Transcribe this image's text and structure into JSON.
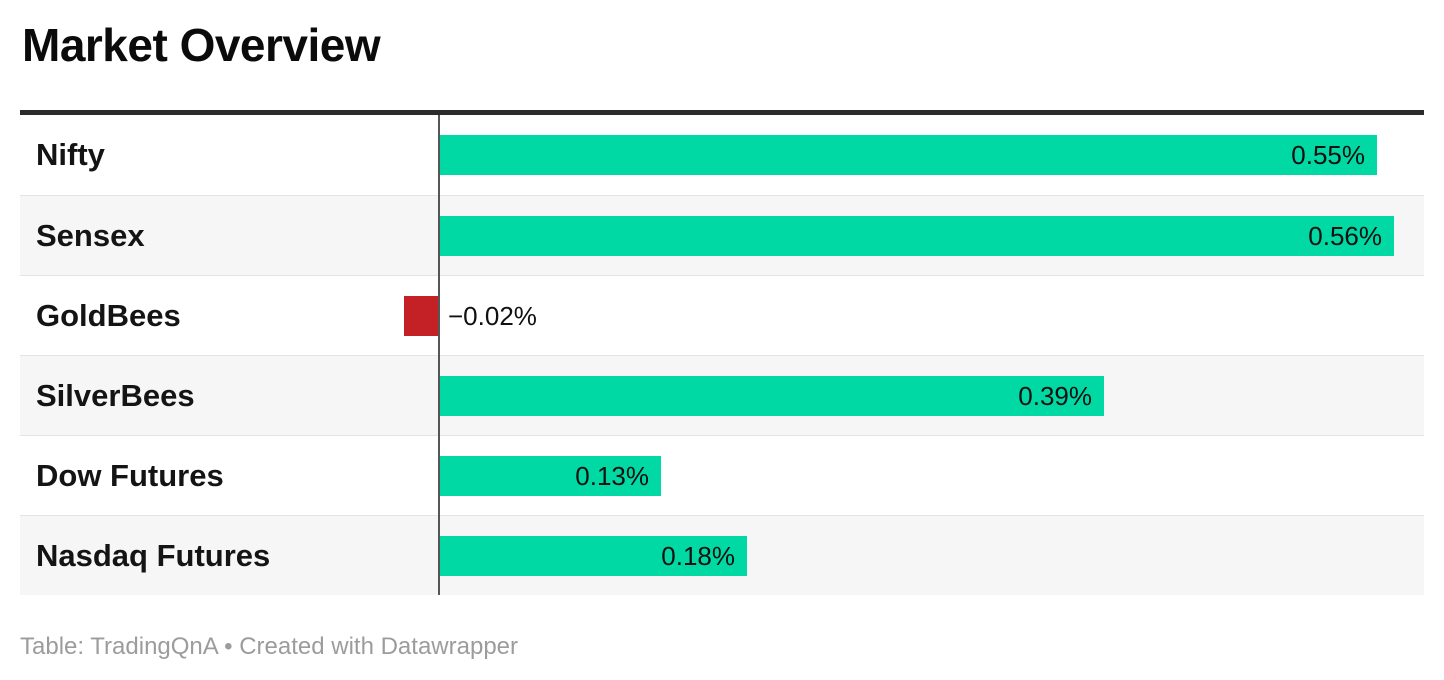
{
  "header": {
    "title": "Market Overview"
  },
  "footer": {
    "text": "Table: TradingQnA • Created with Datawrapper"
  },
  "chart_data": {
    "type": "bar",
    "orientation": "horizontal",
    "title": "Market Overview",
    "categories": [
      "Nifty",
      "Sensex",
      "GoldBees",
      "SilverBees",
      "Dow Futures",
      "Nasdaq Futures"
    ],
    "values": [
      0.55,
      0.56,
      -0.02,
      0.39,
      0.13,
      0.18
    ],
    "value_labels": [
      "0.55%",
      "0.56%",
      "−0.02%",
      "0.39%",
      "0.13%",
      "0.18%"
    ],
    "unit": "%",
    "value_label_position": "inside-end (outside for negative)",
    "legend": "none",
    "grid": "off",
    "zero_baseline": true,
    "colors": {
      "positive_bar": "#00d9a4",
      "negative_bar": "#c42127",
      "zero_line": "#565656",
      "row_alt_background": "#f6f6f6",
      "row_background": "#ffffff",
      "header_rule": "#2b2b2b",
      "label_text": "#141414",
      "value_text": "#101010",
      "footer_text": "#9c9c9c"
    }
  }
}
